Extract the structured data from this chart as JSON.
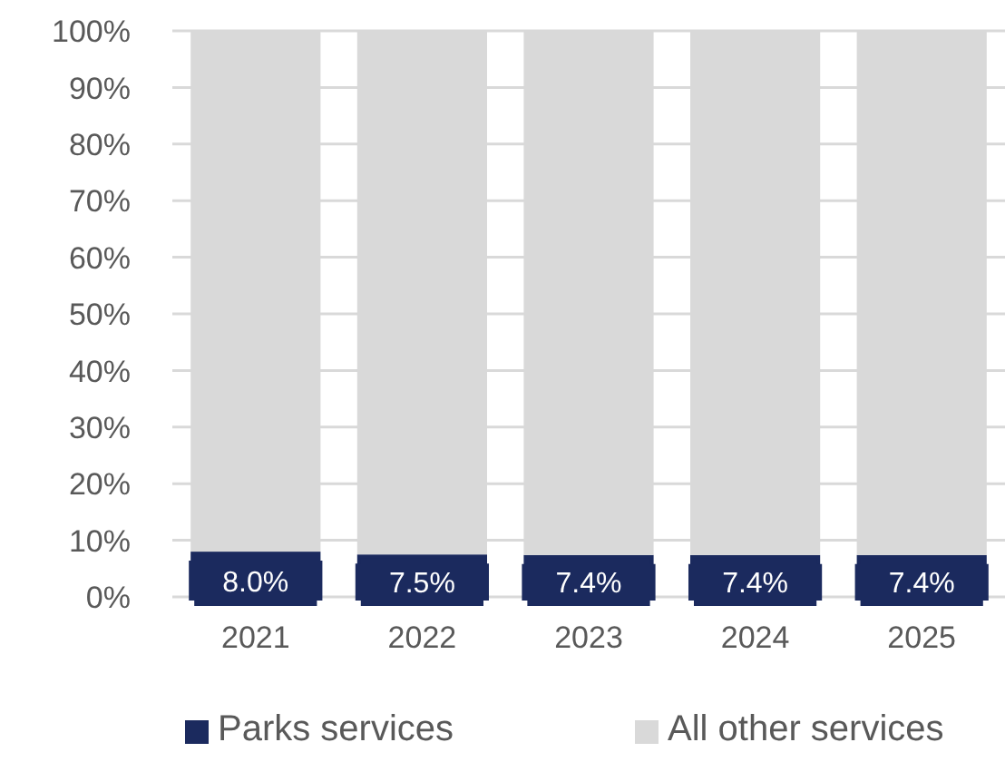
{
  "chart_data": {
    "type": "bar",
    "stacked": true,
    "categories": [
      "2021",
      "2022",
      "2023",
      "2024",
      "2025"
    ],
    "series": [
      {
        "name": "Parks services",
        "color": "#1b2a5e",
        "values": [
          8.0,
          7.5,
          7.4,
          7.4,
          7.4
        ],
        "value_labels": [
          "8.0%",
          "7.5%",
          "7.4%",
          "7.4%",
          "7.4%"
        ]
      },
      {
        "name": "All other services",
        "color": "#d9d9d9",
        "values": [
          92.0,
          92.5,
          92.6,
          92.6,
          92.6
        ]
      }
    ],
    "ylim": [
      0,
      100
    ],
    "yticks": [
      {
        "value": 0,
        "label": "0%"
      },
      {
        "value": 10,
        "label": "10%"
      },
      {
        "value": 20,
        "label": "20%"
      },
      {
        "value": 30,
        "label": "30%"
      },
      {
        "value": 40,
        "label": "40%"
      },
      {
        "value": 50,
        "label": "50%"
      },
      {
        "value": 60,
        "label": "60%"
      },
      {
        "value": 70,
        "label": "70%"
      },
      {
        "value": 80,
        "label": "80%"
      },
      {
        "value": 90,
        "label": "90%"
      },
      {
        "value": 100,
        "label": "100%"
      }
    ],
    "grid": "y",
    "legend": "bottom"
  }
}
